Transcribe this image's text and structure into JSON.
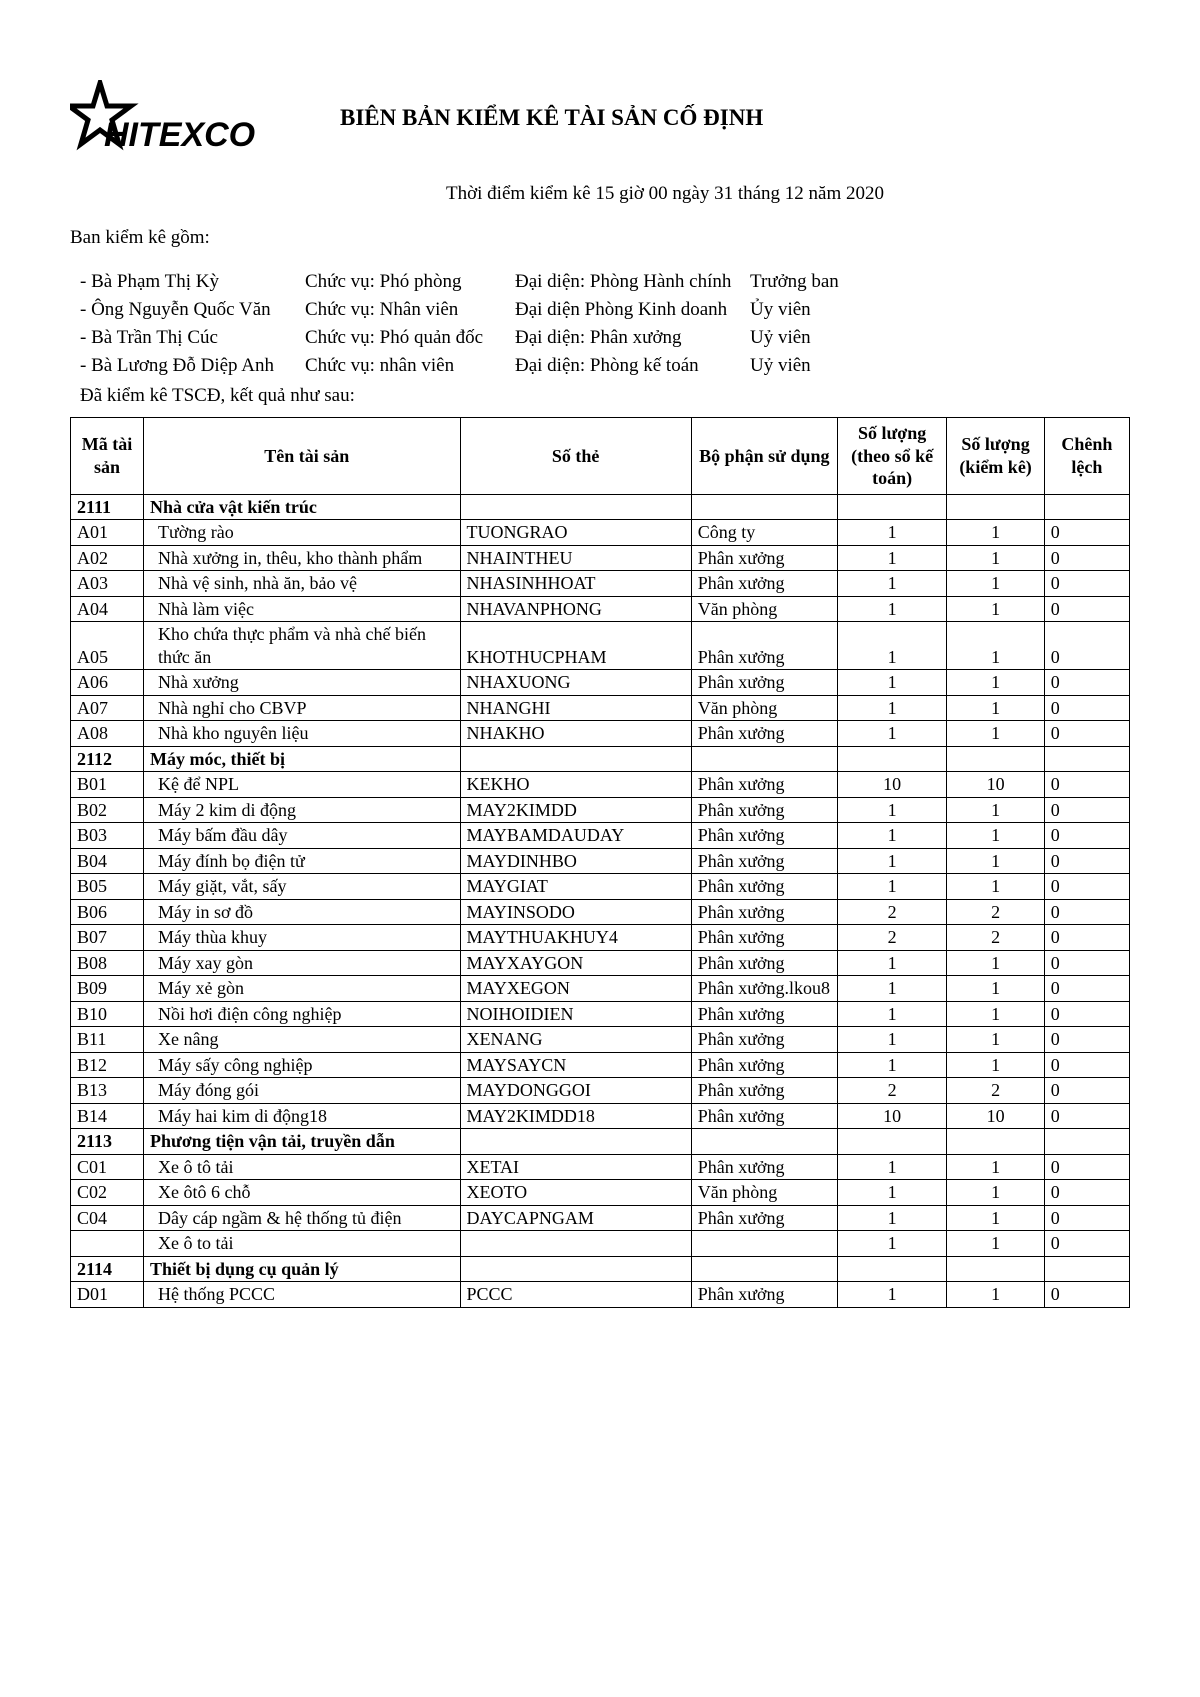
{
  "title": "BIÊN BẢN KIỂM KÊ TÀI SẢN CỐ ĐỊNH",
  "timestamp": "Thời điểm kiểm kê 15 giờ 00 ngày 31 tháng 12 năm 2020",
  "intro": "Ban kiểm kê gồm:",
  "committee": [
    {
      "name": "- Bà Phạm Thị Kỳ",
      "pos": "Chức vụ: Phó phòng",
      "rep": "Đại diện: Phòng Hành chính",
      "role": "Trưởng ban"
    },
    {
      "name": "- Ông Nguyễn Quốc Văn",
      "pos": "Chức vụ: Nhân viên",
      "rep": "Đại diện Phòng Kinh doanh",
      "role": "Ủy viên"
    },
    {
      "name": "- Bà Trần Thị Cúc",
      "pos": "Chức vụ: Phó quản đốc",
      "rep": "Đại diện: Phân xưởng",
      "role": "Uỷ viên"
    },
    {
      "name": "- Bà Lương Đỗ Diệp Anh",
      "pos": "Chức vụ: nhân viên",
      "rep": "Đại diện: Phòng kế toán",
      "role": "Uỷ viên"
    }
  ],
  "result_line": "Đã kiểm kê TSCĐ, kết quả như sau:",
  "columns": [
    "Mã tài sản",
    "Tên tài sản",
    "Số thẻ",
    "Bộ phận sử dụng",
    "Số lượng (theo sổ kế toán)",
    "Số lượng (kiểm kê)",
    "Chênh lệch"
  ],
  "rows": [
    {
      "section": true,
      "ma": "2111",
      "ten": "Nhà cửa vật kiến trúc"
    },
    {
      "ma": "A01",
      "ten": "Tường rào",
      "the": "TUONGRAO",
      "bp": "Công ty",
      "slkt": "1",
      "slkk": "1",
      "cl": "0"
    },
    {
      "ma": "A02",
      "ten": "Nhà xưởng in, thêu, kho thành phẩm",
      "the": "NHAINTHEU",
      "bp": "Phân xưởng",
      "slkt": "1",
      "slkk": "1",
      "cl": "0"
    },
    {
      "ma": "A03",
      "ten": "Nhà vệ sinh, nhà ăn, bảo vệ",
      "the": "NHASINHHOAT",
      "bp": "Phân xưởng",
      "slkt": "1",
      "slkk": "1",
      "cl": "0"
    },
    {
      "ma": "A04",
      "ten": "Nhà làm việc",
      "the": "NHAVANPHONG",
      "bp": "Văn phòng",
      "slkt": "1",
      "slkk": "1",
      "cl": "0"
    },
    {
      "ma": "A05",
      "ten": "Kho chứa thực phẩm và nhà chế biến thức ăn",
      "the": "KHOTHUCPHAM",
      "bp": "Phân xưởng",
      "slkt": "1",
      "slkk": "1",
      "cl": "0"
    },
    {
      "ma": "A06",
      "ten": "Nhà xưởng",
      "the": "NHAXUONG",
      "bp": "Phân xưởng",
      "slkt": "1",
      "slkk": "1",
      "cl": "0"
    },
    {
      "ma": "A07",
      "ten": "Nhà nghỉ cho CBVP",
      "the": "NHANGHI",
      "bp": "Văn phòng",
      "slkt": "1",
      "slkk": "1",
      "cl": "0"
    },
    {
      "ma": "A08",
      "ten": "Nhà kho nguyên liệu",
      "the": "NHAKHO",
      "bp": "Phân xưởng",
      "slkt": "1",
      "slkk": "1",
      "cl": "0"
    },
    {
      "section": true,
      "ma": "2112",
      "ten": "Máy móc, thiết bị"
    },
    {
      "ma": "B01",
      "ten": "Kệ để NPL",
      "the": "KEKHO",
      "bp": "Phân xưởng",
      "slkt": "10",
      "slkk": "10",
      "cl": "0"
    },
    {
      "ma": "B02",
      "ten": "Máy 2 kim di động",
      "the": "MAY2KIMDD",
      "bp": "Phân xưởng",
      "slkt": "1",
      "slkk": "1",
      "cl": "0"
    },
    {
      "ma": "B03",
      "ten": "Máy bấm đầu dây",
      "the": "MAYBAMDAUDAY",
      "bp": "Phân xưởng",
      "slkt": "1",
      "slkk": "1",
      "cl": "0"
    },
    {
      "ma": "B04",
      "ten": "Máy đính bọ điện tử",
      "the": "MAYDINHBO",
      "bp": "Phân xưởng",
      "slkt": "1",
      "slkk": "1",
      "cl": "0"
    },
    {
      "ma": "B05",
      "ten": "Máy giặt, vắt, sấy",
      "the": "MAYGIAT",
      "bp": "Phân xưởng",
      "slkt": "1",
      "slkk": "1",
      "cl": "0"
    },
    {
      "ma": "B06",
      "ten": "Máy in sơ đồ",
      "the": "MAYINSODO",
      "bp": "Phân xưởng",
      "slkt": "2",
      "slkk": "2",
      "cl": "0"
    },
    {
      "ma": "B07",
      "ten": "Máy thùa khuy",
      "the": "MAYTHUAKHUY4",
      "bp": "Phân xưởng",
      "slkt": "2",
      "slkk": "2",
      "cl": "0"
    },
    {
      "ma": "B08",
      "ten": "Máy xay gòn",
      "the": "MAYXAYGON",
      "bp": "Phân xưởng",
      "slkt": "1",
      "slkk": "1",
      "cl": "0"
    },
    {
      "ma": "B09",
      "ten": "Máy xẻ gòn",
      "the": "MAYXEGON",
      "bp": "Phân xưởng.lkou8",
      "slkt": "1",
      "slkk": "1",
      "cl": "0"
    },
    {
      "ma": "B10",
      "ten": "Nồi hơi điện công nghiệp",
      "the": "NOIHOIDIEN",
      "bp": "Phân xưởng",
      "slkt": "1",
      "slkk": "1",
      "cl": "0"
    },
    {
      "ma": "B11",
      "ten": "Xe nâng",
      "the": "XENANG",
      "bp": "Phân xưởng",
      "slkt": "1",
      "slkk": "1",
      "cl": "0"
    },
    {
      "ma": "B12",
      "ten": "Máy sấy công nghiệp",
      "the": "MAYSAYCN",
      "bp": "Phân xưởng",
      "slkt": "1",
      "slkk": "1",
      "cl": "0"
    },
    {
      "ma": "B13",
      "ten": "Máy đóng gói",
      "the": "MAYDONGGOI",
      "bp": "Phân xưởng",
      "slkt": "2",
      "slkk": "2",
      "cl": "0"
    },
    {
      "ma": "B14",
      "ten": "Máy hai kim di động18",
      "the": "MAY2KIMDD18",
      "bp": "Phân xưởng",
      "slkt": "10",
      "slkk": "10",
      "cl": "0"
    },
    {
      "section": true,
      "ma": "2113",
      "ten": "Phương tiện vận tải, truyền dẫn"
    },
    {
      "ma": "C01",
      "ten": "Xe ô tô tải",
      "the": "XETAI",
      "bp": "Phân xưởng",
      "slkt": "1",
      "slkk": "1",
      "cl": "0"
    },
    {
      "ma": "C02",
      "ten": "Xe ôtô 6 chỗ",
      "the": "XEOTO",
      "bp": "Văn phòng",
      "slkt": "1",
      "slkk": "1",
      "cl": "0"
    },
    {
      "ma": "C04",
      "ten": "Dây cáp ngầm & hệ thống tủ điện",
      "the": "DAYCAPNGAM",
      "bp": "Phân xưởng",
      "slkt": "1",
      "slkk": "1",
      "cl": "0"
    },
    {
      "ma": "",
      "ten": "Xe ô to tải",
      "the": "",
      "bp": "",
      "slkt": "1",
      "slkk": "1",
      "cl": "0"
    },
    {
      "section": true,
      "ma": "2114",
      "ten": "Thiết bị dụng cụ quản lý"
    },
    {
      "ma": "D01",
      "ten": "Hệ thống PCCC",
      "the": "PCCC",
      "bp": "Phân xưởng",
      "slkt": "1",
      "slkk": "1",
      "cl": "0"
    }
  ],
  "logo_text": "HITEXCO"
}
